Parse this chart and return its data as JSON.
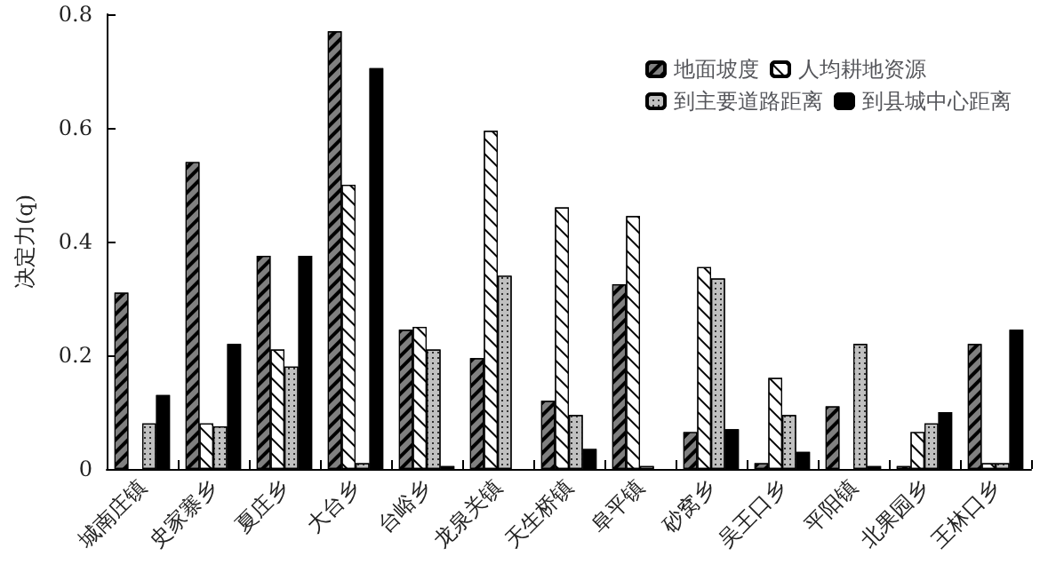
{
  "chart_data": {
    "type": "bar",
    "ylabel": "决定力(q)",
    "categories": [
      "城南庄镇",
      "史家寨乡",
      "夏庄乡",
      "大台乡",
      "台峪乡",
      "龙泉关镇",
      "天生桥镇",
      "阜平镇",
      "砂窝乡",
      "吴王口乡",
      "平阳镇",
      "北果园乡",
      "王林口乡"
    ],
    "series": [
      {
        "name": "地面坡度",
        "color": "#808080",
        "values": [
          0.31,
          0.54,
          0.375,
          0.77,
          0.245,
          0.195,
          0.12,
          0.325,
          0.065,
          0.01,
          0.11,
          0.005,
          0.22
        ]
      },
      {
        "name": "人均耕地资源",
        "color": "#ffffff",
        "values": [
          0,
          0.08,
          0.21,
          0.5,
          0.25,
          0.595,
          0.46,
          0.445,
          0.355,
          0.16,
          0,
          0.065,
          0.01
        ]
      },
      {
        "name": "到主要道路距离",
        "color": "#c0c0c0",
        "values": [
          0.08,
          0.075,
          0.18,
          0.01,
          0.21,
          0.34,
          0.095,
          0.005,
          0.335,
          0.095,
          0.22,
          0.08,
          0.01
        ]
      },
      {
        "name": "到县城中心距离",
        "color": "#000000",
        "values": [
          0.13,
          0.22,
          0.375,
          0.705,
          0.005,
          0,
          0.035,
          0,
          0.07,
          0.03,
          0.005,
          0.1,
          0.245
        ]
      }
    ],
    "ylim": [
      0,
      0.8
    ],
    "yticks": [
      0,
      0.2,
      0.4,
      0.6,
      0.8
    ],
    "grid": false,
    "legend": "top right"
  }
}
